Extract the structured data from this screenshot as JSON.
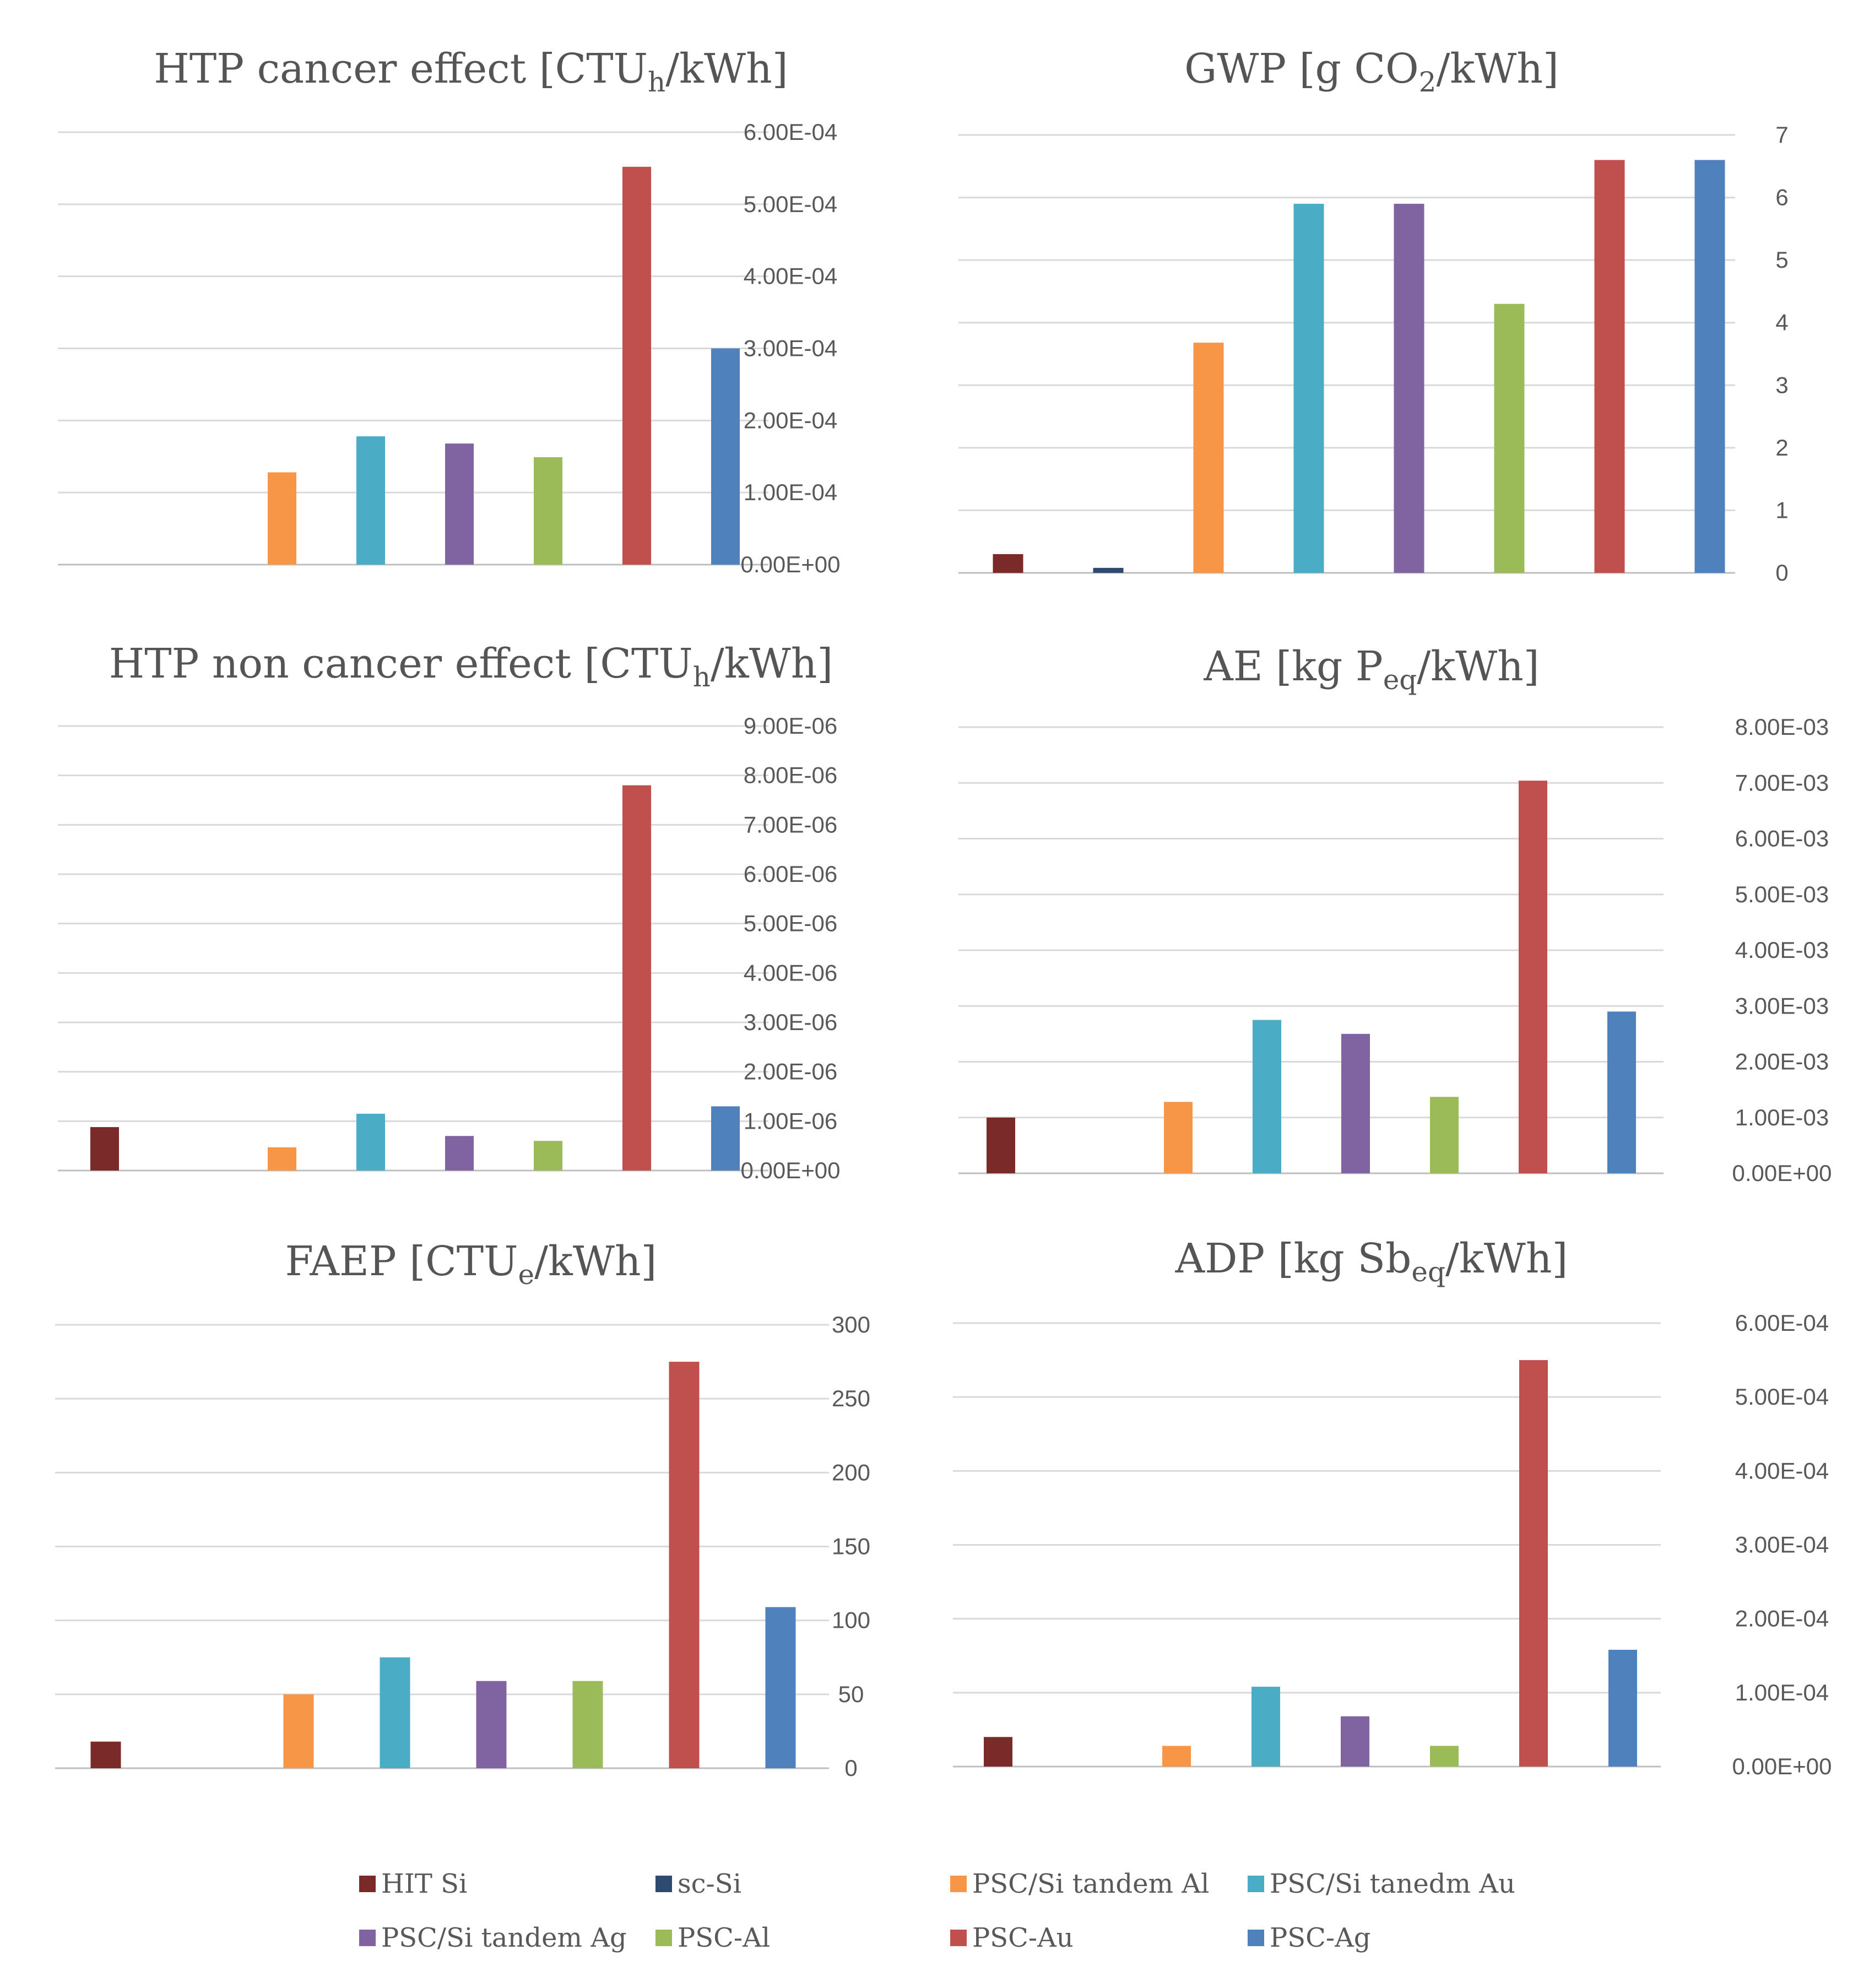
{
  "series": [
    {
      "name": "HIT Si",
      "color": "#7b2a2a"
    },
    {
      "name": "sc-Si",
      "color": "#2e4a6e"
    },
    {
      "name": "PSC/Si tandem Al",
      "color": "#f79646"
    },
    {
      "name": "PSC/Si tanedm Au",
      "color": "#4bacc6"
    },
    {
      "name": "PSC/Si tandem Ag",
      "color": "#8064a2"
    },
    {
      "name": "PSC-Al",
      "color": "#9bbb59"
    },
    {
      "name": "PSC-Au",
      "color": "#c0504d"
    },
    {
      "name": "PSC-Ag",
      "color": "#4f81bd"
    }
  ],
  "chart_data": [
    {
      "type": "bar",
      "title": {
        "main": "HTP cancer effect [CTU",
        "sub": "h",
        "tail": "/kWh]"
      },
      "ylim": [
        0,
        0.0006
      ],
      "ticks": [
        0,
        0.0001,
        0.0002,
        0.0003,
        0.0004,
        0.0005,
        0.0006
      ],
      "tick_labels": [
        "0.00E+00",
        "1.00E-04",
        "2.00E-04",
        "3.00E-04",
        "4.00E-04",
        "5.00E-04",
        "6.00E-04"
      ],
      "values": [
        0,
        0,
        0.000128,
        0.000178,
        0.000168,
        0.000149,
        0.000552,
        0.0003
      ]
    },
    {
      "type": "bar",
      "title": {
        "main": "GWP [g CO",
        "sub": "2",
        "tail": "/kWh]"
      },
      "ylim": [
        0,
        7
      ],
      "ticks": [
        0,
        1,
        2,
        3,
        4,
        5,
        6,
        7
      ],
      "tick_labels": [
        "0",
        "1",
        "2",
        "3",
        "4",
        "5",
        "6",
        "7"
      ],
      "values": [
        0.3,
        0.08,
        3.68,
        5.9,
        5.9,
        4.3,
        6.6,
        6.6
      ]
    },
    {
      "type": "bar",
      "title": {
        "main": "HTP non cancer effect [CTU",
        "sub": "h",
        "tail": "/kWh]"
      },
      "ylim": [
        0,
        9e-06
      ],
      "ticks": [
        0,
        1e-06,
        2e-06,
        3e-06,
        4e-06,
        5e-06,
        6e-06,
        7e-06,
        8e-06,
        9e-06
      ],
      "tick_labels": [
        "0.00E+00",
        "1.00E-06",
        "2.00E-06",
        "3.00E-06",
        "4.00E-06",
        "5.00E-06",
        "6.00E-06",
        "7.00E-06",
        "8.00E-06",
        "9.00E-06"
      ],
      "values": [
        8.8e-07,
        0,
        4.7e-07,
        1.15e-06,
        7e-07,
        6e-07,
        7.8e-06,
        1.3e-06
      ]
    },
    {
      "type": "bar",
      "title": {
        "main": "AE [kg P",
        "sub": "eq",
        "tail": "/kWh]"
      },
      "ylim": [
        0,
        0.008
      ],
      "ticks": [
        0,
        0.001,
        0.002,
        0.003,
        0.004,
        0.005,
        0.006,
        0.007,
        0.008
      ],
      "tick_labels": [
        "0.00E+00",
        "1.00E-03",
        "2.00E-03",
        "3.00E-03",
        "4.00E-03",
        "5.00E-03",
        "6.00E-03",
        "7.00E-03",
        "8.00E-03"
      ],
      "values": [
        0.001,
        0,
        0.00128,
        0.00275,
        0.0025,
        0.00137,
        0.00704,
        0.0029
      ]
    },
    {
      "type": "bar",
      "title": {
        "main": "FAEP [CTU",
        "sub": "e",
        "tail": "/kWh]"
      },
      "ylim": [
        0,
        300
      ],
      "ticks": [
        0,
        50,
        100,
        150,
        200,
        250,
        300
      ],
      "tick_labels": [
        "0",
        "50",
        "100",
        "150",
        "200",
        "250",
        "300"
      ],
      "values": [
        18,
        0,
        50,
        75,
        59,
        59,
        275,
        109
      ]
    },
    {
      "type": "bar",
      "title": {
        "main": "ADP [kg Sb",
        "sub": "eq",
        "tail": "/kWh]"
      },
      "ylim": [
        0,
        0.0006
      ],
      "ticks": [
        0,
        0.0001,
        0.0002,
        0.0003,
        0.0004,
        0.0005,
        0.0006
      ],
      "tick_labels": [
        "0.00E+00",
        "1.00E-04",
        "2.00E-04",
        "3.00E-04",
        "4.00E-04",
        "5.00E-04",
        "6.00E-04"
      ],
      "values": [
        4e-05,
        0,
        2.8e-05,
        0.000108,
        6.8e-05,
        2.8e-05,
        0.00055,
        0.000158
      ]
    }
  ]
}
